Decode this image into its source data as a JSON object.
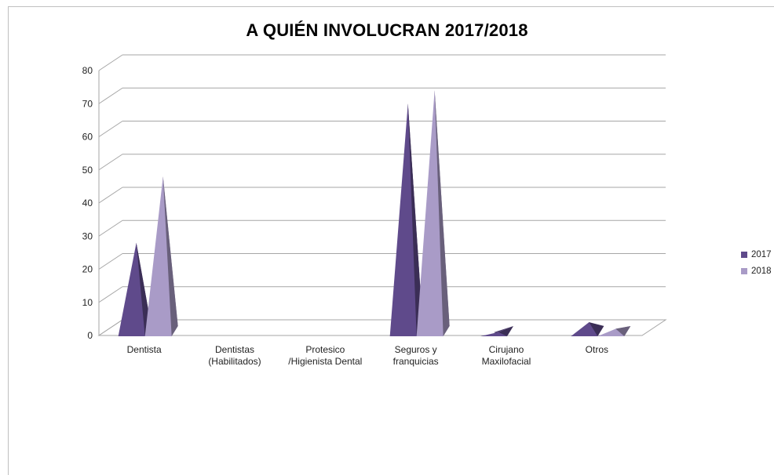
{
  "chart_data": {
    "type": "bar",
    "subtype": "3d-pyramid",
    "title": "A QUIÉN INVOLUCRAN 2017/2018",
    "categories": [
      [
        "Dentista"
      ],
      [
        "Dentistas",
        "(Habilitados)"
      ],
      [
        "Protesico",
        "/Higienista Dental"
      ],
      [
        "Seguros y",
        "franquicias"
      ],
      [
        "Cirujano",
        "Maxilofacial"
      ],
      [
        "Otros"
      ]
    ],
    "series": [
      {
        "name": "2017",
        "color": "#5f4a8b",
        "values": [
          28,
          0,
          0,
          70,
          1,
          4
        ]
      },
      {
        "name": "2018",
        "color": "#a99bc7",
        "values": [
          48,
          0,
          0,
          74,
          0,
          2
        ]
      }
    ],
    "ylim": [
      0,
      80
    ],
    "yticks": [
      "0",
      "10",
      "20",
      "30",
      "40",
      "50",
      "60",
      "70",
      "80"
    ],
    "grid": true,
    "legend_position": "right"
  }
}
